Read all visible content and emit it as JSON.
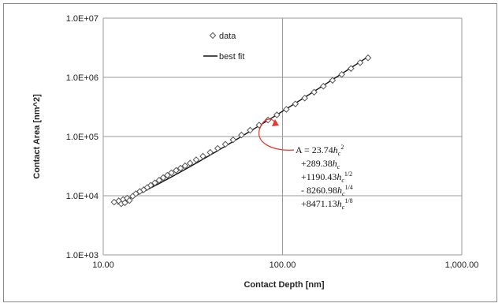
{
  "chart_data": {
    "type": "scatter",
    "x_scale": "log",
    "y_scale": "log",
    "xlim": [
      10,
      1000
    ],
    "ylim": [
      1000,
      10000000
    ],
    "grid": true,
    "xlabel": "Contact Depth [nm]",
    "ylabel": "Contact Area [nm^2]",
    "x_ticks": [
      10,
      100,
      1000
    ],
    "x_tick_labels": [
      "10.00",
      "100.00",
      "1,000.00"
    ],
    "y_ticks": [
      1000,
      10000,
      100000,
      1000000,
      10000000
    ],
    "y_tick_labels": [
      "1.0E+03",
      "1.0E+04",
      "1.0E+05",
      "1.0E+06",
      "1.0E+07"
    ],
    "legend_position": "top-center",
    "series": [
      {
        "name": "data",
        "marker": "open-diamond",
        "color": "#555555",
        "points": [
          [
            11.5,
            7800
          ],
          [
            12.2,
            8200
          ],
          [
            12.6,
            7300
          ],
          [
            12.9,
            8600
          ],
          [
            13.2,
            7600
          ],
          [
            13.6,
            9100
          ],
          [
            14.0,
            8300
          ],
          [
            14.6,
            9800
          ],
          [
            15.2,
            10800
          ],
          [
            16.0,
            11800
          ],
          [
            16.8,
            12600
          ],
          [
            17.6,
            13800
          ],
          [
            18.4,
            15000
          ],
          [
            19.4,
            16500
          ],
          [
            20.5,
            18300
          ],
          [
            21.6,
            20200
          ],
          [
            22.8,
            22200
          ],
          [
            24.0,
            24400
          ],
          [
            25.5,
            26800
          ],
          [
            27.0,
            29200
          ],
          [
            28.6,
            32000
          ],
          [
            30.5,
            35500
          ],
          [
            33.0,
            40500
          ],
          [
            36.0,
            46500
          ],
          [
            39.5,
            54000
          ],
          [
            43.5,
            63000
          ],
          [
            48.0,
            74000
          ],
          [
            53.0,
            88000
          ],
          [
            59.0,
            106000
          ],
          [
            66.0,
            128000
          ],
          [
            74.0,
            156000
          ],
          [
            83.0,
            190000
          ],
          [
            93.0,
            232000
          ],
          [
            105.0,
            288000
          ],
          [
            118.0,
            356000
          ],
          [
            133.0,
            446000
          ],
          [
            150.0,
            562000
          ],
          [
            169.0,
            708000
          ],
          [
            190.0,
            890000
          ],
          [
            214.0,
            1120000
          ],
          [
            241.0,
            1410000
          ],
          [
            271.0,
            1770000
          ],
          [
            300.0,
            2140000
          ]
        ]
      },
      {
        "name": "best fit",
        "color": "#111111",
        "line": true,
        "x_range": [
          12,
          300
        ]
      }
    ],
    "fit_equation": {
      "lines": [
        {
          "text": "A = 23.74",
          "var": "h",
          "sub": "c",
          "sup": "2"
        },
        {
          "text": "+289.38",
          "var": "h",
          "sub": "c",
          "sup": ""
        },
        {
          "text": "+1190.43",
          "var": "h",
          "sub": "c",
          "sup": "1/2"
        },
        {
          "text": "- 8260.98",
          "var": "h",
          "sub": "c",
          "sup": "1/4"
        },
        {
          "text": "+8471.13",
          "var": "h",
          "sub": "c",
          "sup": "1/8"
        }
      ],
      "coefficients": [
        23.74,
        289.38,
        1190.43,
        -8260.98,
        8471.13
      ],
      "exponents": [
        2,
        1,
        0.5,
        0.25,
        0.125
      ]
    },
    "annotation_arrow_color": "#e23b2e"
  }
}
